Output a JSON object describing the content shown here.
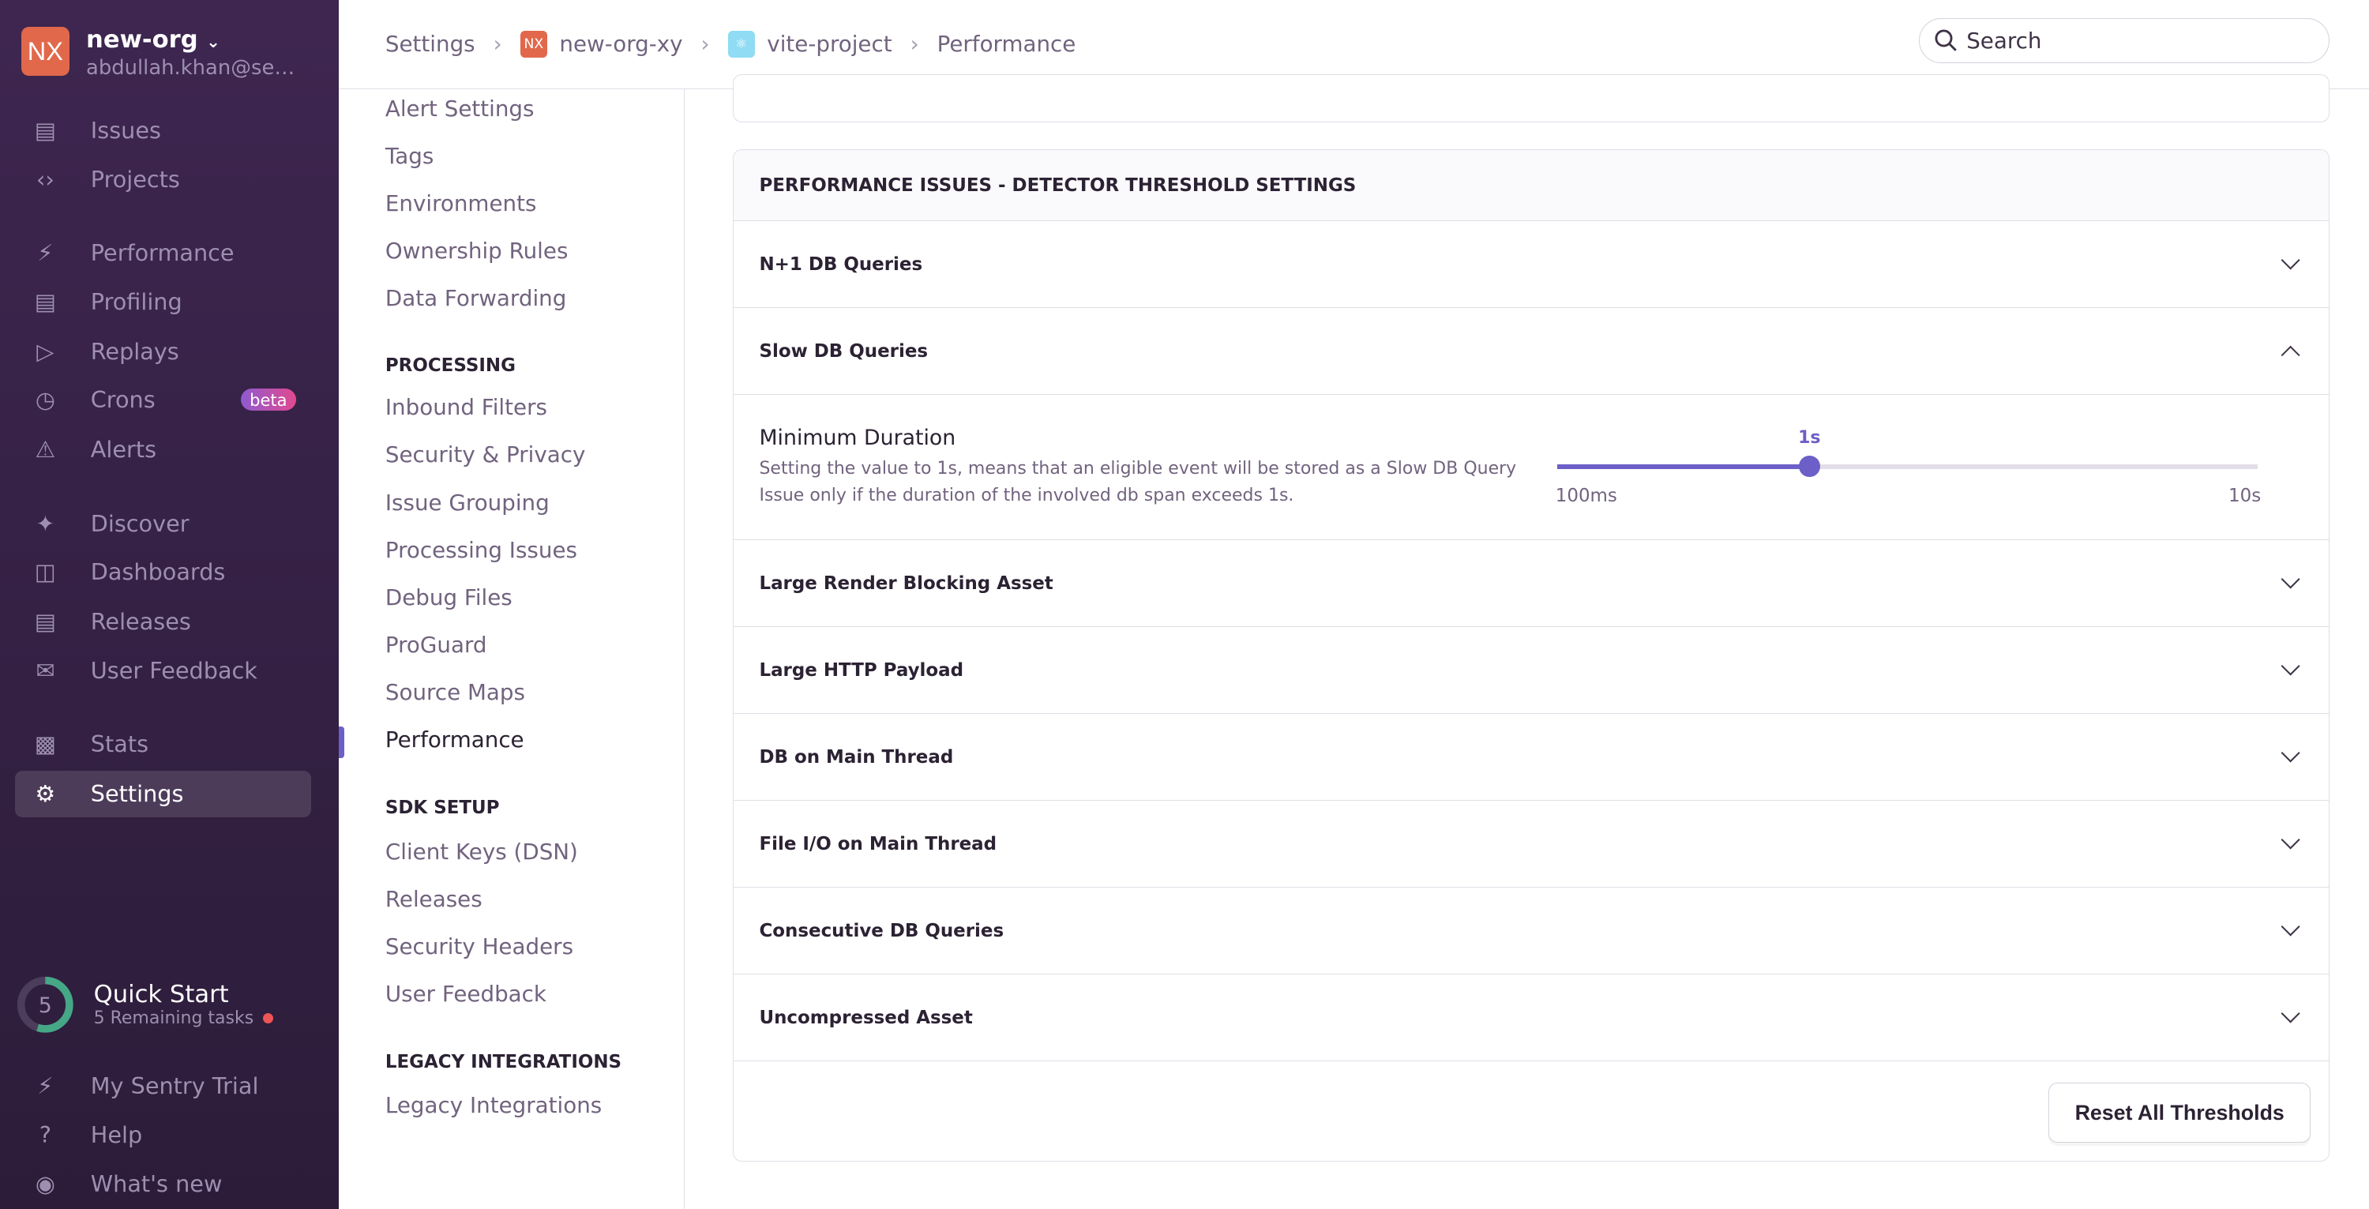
{
  "org": {
    "initials": "NX",
    "name": "new-org",
    "email": "abdullah.khan@sentry.io"
  },
  "nav": [
    {
      "label": "Issues",
      "icon": "inbox-icon"
    },
    {
      "label": "Projects",
      "icon": "folder-code-icon"
    },
    {
      "label": "Performance",
      "icon": "lightning-icon"
    },
    {
      "label": "Profiling",
      "icon": "profiling-icon"
    },
    {
      "label": "Replays",
      "icon": "play-icon"
    },
    {
      "label": "Crons",
      "icon": "clock-icon",
      "badge": "beta"
    },
    {
      "label": "Alerts",
      "icon": "siren-icon"
    },
    {
      "label": "Discover",
      "icon": "telescope-icon"
    },
    {
      "label": "Dashboards",
      "icon": "dashboard-icon"
    },
    {
      "label": "Releases",
      "icon": "stack-icon"
    },
    {
      "label": "User Feedback",
      "icon": "megaphone-icon"
    },
    {
      "label": "Stats",
      "icon": "stats-icon"
    },
    {
      "label": "Settings",
      "icon": "gear-icon"
    }
  ],
  "quick_start": {
    "count": "5",
    "title": "Quick Start",
    "subtitle": "5 Remaining tasks",
    "progress": 0.55
  },
  "footer_nav": [
    {
      "label": "My Sentry Trial"
    },
    {
      "label": "Help"
    },
    {
      "label": "What's new"
    }
  ],
  "breadcrumb": {
    "settings": "Settings",
    "org": "new-org-xy",
    "org_badge": "NX",
    "project": "vite-project",
    "page": "Performance"
  },
  "search": {
    "placeholder": "Search"
  },
  "subnav": {
    "top": [
      "Alert Settings",
      "Tags",
      "Environments",
      "Ownership Rules",
      "Data Forwarding"
    ],
    "processing_header": "PROCESSING",
    "processing": [
      "Inbound Filters",
      "Security & Privacy",
      "Issue Grouping",
      "Processing Issues",
      "Debug Files",
      "ProGuard",
      "Source Maps",
      "Performance"
    ],
    "sdk_header": "SDK SETUP",
    "sdk": [
      "Client Keys (DSN)",
      "Releases",
      "Security Headers",
      "User Feedback"
    ],
    "legacy_header": "LEGACY INTEGRATIONS",
    "legacy": [
      "Legacy Integrations"
    ]
  },
  "panel": {
    "title": "PERFORMANCE ISSUES - DETECTOR THRESHOLD SETTINGS",
    "rows": [
      "N+1 DB Queries",
      "Slow DB Queries",
      "Large Render Blocking Asset",
      "Large HTTP Payload",
      "DB on Main Thread",
      "File I/O on Main Thread",
      "Consecutive DB Queries",
      "Uncompressed Asset"
    ],
    "setting": {
      "label": "Minimum Duration",
      "description": "Setting the value to 1s, means that an eligible event will be stored as a Slow DB Query Issue only if the duration of the involved db span exceeds 1s.",
      "value": "1s",
      "min": "100ms",
      "max": "10s",
      "position": 0.36
    },
    "reset": "Reset All Thresholds"
  }
}
